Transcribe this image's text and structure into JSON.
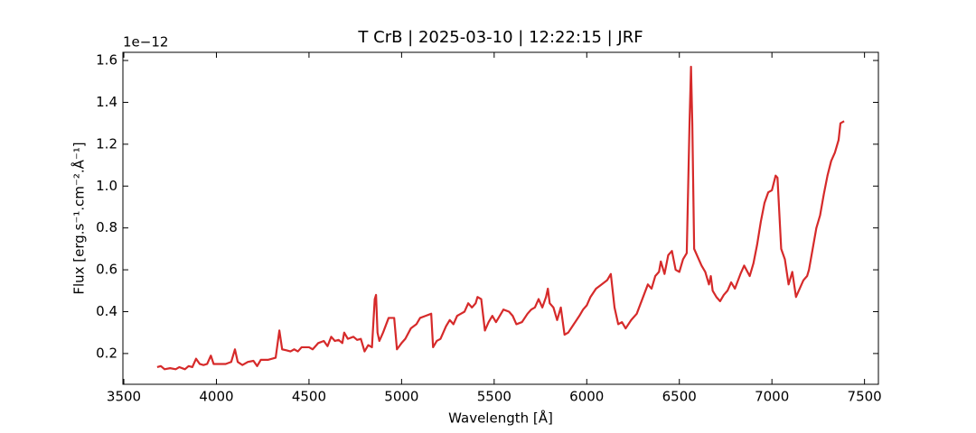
{
  "chart_data": {
    "type": "line",
    "title": "T CrB | 2025-03-10 | 12:22:15 | JRF",
    "x_label": "Wavelength [Å]",
    "y_label": "Flux [erg.s⁻¹.cm⁻².Å⁻¹]",
    "y_offset_label": "1e−12",
    "xlim": [
      3495,
      7575
    ],
    "ylim": [
      0.053,
      1.639
    ],
    "xticks": [
      3500,
      4000,
      4500,
      5000,
      5500,
      6000,
      6500,
      7000,
      7500
    ],
    "yticks": [
      0.2,
      0.4,
      0.6,
      0.8,
      {
        "value": 1.0,
        "label": "1.0"
      },
      1.2,
      1.4,
      1.6
    ],
    "grid": false,
    "series": [
      {
        "color": "#d62a2a",
        "x": [
          3680,
          3700,
          3720,
          3750,
          3780,
          3800,
          3830,
          3850,
          3870,
          3890,
          3910,
          3930,
          3950,
          3970,
          3985,
          4000,
          4050,
          4080,
          4100,
          4115,
          4140,
          4170,
          4200,
          4220,
          4240,
          4280,
          4320,
          4340,
          4355,
          4380,
          4400,
          4420,
          4440,
          4460,
          4500,
          4520,
          4550,
          4580,
          4600,
          4620,
          4640,
          4660,
          4680,
          4690,
          4710,
          4740,
          4760,
          4780,
          4800,
          4820,
          4840,
          4855,
          4862,
          4870,
          4880,
          4900,
          4930,
          4960,
          4975,
          5000,
          5020,
          5050,
          5080,
          5100,
          5130,
          5160,
          5170,
          5190,
          5210,
          5240,
          5260,
          5280,
          5300,
          5320,
          5340,
          5360,
          5380,
          5400,
          5410,
          5430,
          5450,
          5470,
          5490,
          5510,
          5530,
          5550,
          5580,
          5600,
          5620,
          5650,
          5680,
          5700,
          5720,
          5740,
          5760,
          5780,
          5790,
          5800,
          5820,
          5840,
          5860,
          5880,
          5900,
          5930,
          5960,
          5980,
          6000,
          6020,
          6050,
          6080,
          6110,
          6130,
          6150,
          6170,
          6190,
          6210,
          6240,
          6270,
          6300,
          6330,
          6350,
          6370,
          6390,
          6400,
          6420,
          6440,
          6460,
          6480,
          6500,
          6520,
          6540,
          6555,
          6563,
          6570,
          6580,
          6600,
          6620,
          6640,
          6660,
          6670,
          6680,
          6700,
          6720,
          6740,
          6760,
          6780,
          6800,
          6830,
          6850,
          6880,
          6900,
          6920,
          6940,
          6960,
          6980,
          7000,
          7020,
          7030,
          7050,
          7070,
          7090,
          7110,
          7130,
          7150,
          7170,
          7190,
          7200,
          7220,
          7240,
          7260,
          7280,
          7300,
          7320,
          7340,
          7360,
          7370,
          7390
        ],
        "values": [
          0.135,
          0.14,
          0.125,
          0.13,
          0.125,
          0.135,
          0.125,
          0.14,
          0.135,
          0.175,
          0.15,
          0.145,
          0.15,
          0.19,
          0.15,
          0.15,
          0.15,
          0.16,
          0.22,
          0.16,
          0.145,
          0.16,
          0.165,
          0.14,
          0.17,
          0.17,
          0.18,
          0.31,
          0.22,
          0.215,
          0.21,
          0.22,
          0.21,
          0.23,
          0.23,
          0.22,
          0.25,
          0.26,
          0.235,
          0.28,
          0.26,
          0.265,
          0.25,
          0.3,
          0.27,
          0.28,
          0.265,
          0.27,
          0.21,
          0.24,
          0.23,
          0.46,
          0.48,
          0.3,
          0.26,
          0.3,
          0.37,
          0.37,
          0.22,
          0.25,
          0.27,
          0.32,
          0.34,
          0.37,
          0.38,
          0.39,
          0.23,
          0.26,
          0.27,
          0.33,
          0.36,
          0.34,
          0.38,
          0.39,
          0.4,
          0.44,
          0.42,
          0.44,
          0.47,
          0.46,
          0.31,
          0.35,
          0.38,
          0.35,
          0.38,
          0.41,
          0.4,
          0.38,
          0.34,
          0.35,
          0.39,
          0.41,
          0.42,
          0.46,
          0.42,
          0.47,
          0.51,
          0.44,
          0.42,
          0.36,
          0.42,
          0.29,
          0.3,
          0.34,
          0.38,
          0.41,
          0.43,
          0.47,
          0.51,
          0.53,
          0.55,
          0.58,
          0.42,
          0.34,
          0.35,
          0.32,
          0.36,
          0.39,
          0.46,
          0.53,
          0.51,
          0.57,
          0.59,
          0.64,
          0.58,
          0.67,
          0.69,
          0.6,
          0.59,
          0.65,
          0.68,
          1.3,
          1.57,
          1.3,
          0.7,
          0.66,
          0.62,
          0.59,
          0.53,
          0.57,
          0.5,
          0.47,
          0.45,
          0.48,
          0.5,
          0.54,
          0.51,
          0.58,
          0.62,
          0.57,
          0.63,
          0.72,
          0.83,
          0.92,
          0.97,
          0.98,
          1.05,
          1.04,
          0.7,
          0.65,
          0.53,
          0.59,
          0.47,
          0.51,
          0.55,
          0.57,
          0.6,
          0.7,
          0.8,
          0.86,
          0.96,
          1.05,
          1.12,
          1.16,
          1.22,
          1.3,
          1.31
        ]
      }
    ]
  }
}
